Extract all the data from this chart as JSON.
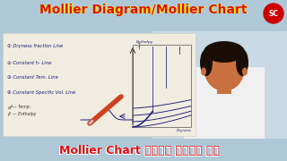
{
  "title_top": "Mollier Diagram/Mollier Chart",
  "title_bottom": "Mollier Chart इतना आसान है",
  "title_top_color": "#dd1111",
  "title_top_outline": "#ffff00",
  "title_bottom_color": "#dd1111",
  "title_bottom_outline": "#ffffff",
  "bg_color": "#aec8d8",
  "paper_color": "#f0ece0",
  "list_items": [
    "① Dryness fraction Line",
    "② Constant h- Line",
    "③ Constant Tem. Line",
    "④ Constant Specific Vol. Line"
  ],
  "enthalpy_label": "Enthalpy",
  "arrow_up_label": "h",
  "dryness_label": "Dryness",
  "sc_logo_color": "#cc0000",
  "sc_logo_text": "SC",
  "curve_color": "#1a1a7a",
  "skin_color": "#c87040",
  "hair_color": "#1a0f08",
  "shirt_color": "#f0f0f0",
  "person_bg": "#c8d8e4"
}
